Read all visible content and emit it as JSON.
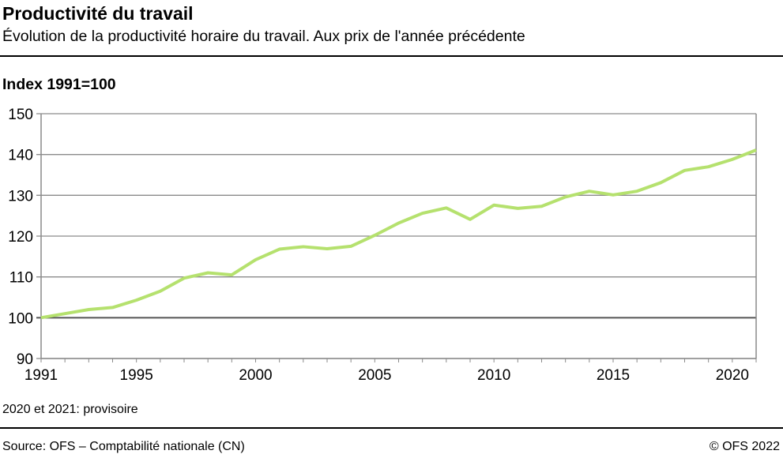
{
  "header": {
    "title": "Productivité du travail",
    "subtitle": "Évolution de la productivité horaire du travail. Aux prix de l'année précédente"
  },
  "chart_data": {
    "type": "line",
    "title": "Productivité du travail",
    "ylabel": "Index 1991=100",
    "xlim": [
      1991,
      2021
    ],
    "ylim": [
      90,
      150
    ],
    "xticks": [
      1991,
      1995,
      2000,
      2005,
      2010,
      2015,
      2020
    ],
    "yticks": [
      90,
      100,
      110,
      120,
      130,
      140,
      150
    ],
    "grid": true,
    "color": "#b5e16e",
    "x": [
      1991,
      1992,
      1993,
      1994,
      1995,
      1996,
      1997,
      1998,
      1999,
      2000,
      2001,
      2002,
      2003,
      2004,
      2005,
      2006,
      2007,
      2008,
      2009,
      2010,
      2011,
      2012,
      2013,
      2014,
      2015,
      2016,
      2017,
      2018,
      2019,
      2020,
      2021
    ],
    "y": [
      100,
      101,
      102,
      102.5,
      104.3,
      106.5,
      109.7,
      111,
      110.5,
      114.2,
      116.8,
      117.4,
      116.9,
      117.5,
      120.2,
      123.2,
      125.6,
      126.9,
      124.1,
      127.6,
      126.8,
      127.3,
      129.6,
      131,
      130.1,
      131,
      133.1,
      136.1,
      137,
      138.8,
      141.1
    ]
  },
  "footer": {
    "note": "2020 et 2021: provisoire",
    "source": "Source: OFS – Comptabilité nationale (CN)",
    "copyright": "© OFS 2022"
  }
}
